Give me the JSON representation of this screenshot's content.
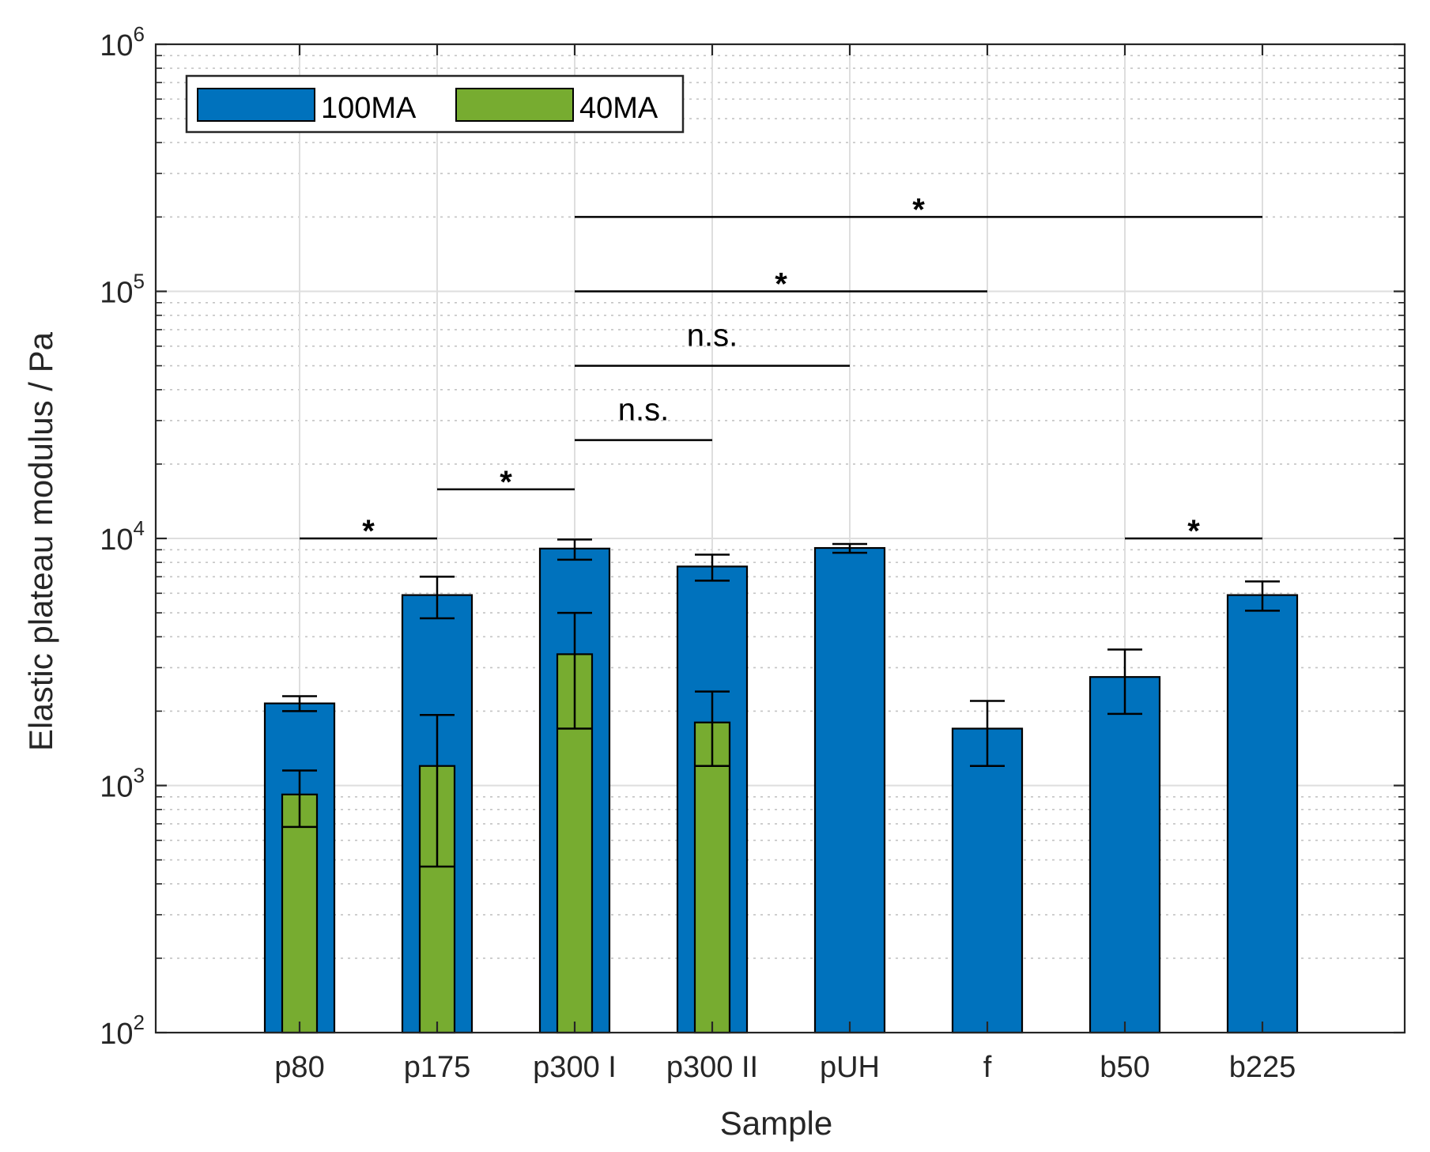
{
  "chart_data": {
    "type": "bar",
    "xlabel": "Sample",
    "ylabel": "Elastic plateau modulus / Pa",
    "yscale": "log",
    "ylim": [
      100,
      1000000
    ],
    "grid": true,
    "legend_position": "top-left",
    "categories": [
      "p80",
      "p175",
      "p300 I",
      "p300 II",
      "pUH",
      "f",
      "b50",
      "b225"
    ],
    "y_tick_labels": [
      {
        "base": "10",
        "exp": "2"
      },
      {
        "base": "10",
        "exp": "3"
      },
      {
        "base": "10",
        "exp": "4"
      },
      {
        "base": "10",
        "exp": "5"
      },
      {
        "base": "10",
        "exp": "6"
      }
    ],
    "series": [
      {
        "name": "100MA",
        "color": "#0072BD",
        "values": [
          2150,
          5900,
          9100,
          7700,
          9150,
          1700,
          2750,
          5900
        ],
        "err_low": [
          2000,
          4750,
          8200,
          6750,
          8750,
          1200,
          1950,
          5100
        ],
        "err_high": [
          2300,
          7000,
          9900,
          8600,
          9500,
          2200,
          3550,
          6700
        ]
      },
      {
        "name": "40MA",
        "color": "#77AC30",
        "values": [
          920,
          1200,
          3400,
          1800,
          null,
          null,
          null,
          null
        ],
        "err_low": [
          680,
          470,
          1700,
          1200,
          null,
          null,
          null,
          null
        ],
        "err_high": [
          1150,
          1930,
          5000,
          2400,
          null,
          null,
          null,
          null
        ]
      }
    ],
    "significance": [
      {
        "from": 0,
        "to": 1,
        "y": 10000,
        "label": "*"
      },
      {
        "from": 1,
        "to": 2,
        "y": 15800,
        "label": "*"
      },
      {
        "from": 2,
        "to": 3,
        "y": 25000,
        "label": "n.s."
      },
      {
        "from": 2,
        "to": 4,
        "y": 50000,
        "label": "n.s."
      },
      {
        "from": 2,
        "to": 5,
        "y": 100000,
        "label": "*"
      },
      {
        "from": 2,
        "to": 7,
        "y": 200000,
        "label": "*"
      },
      {
        "from": 6,
        "to": 7,
        "y": 10000,
        "label": "*"
      }
    ]
  }
}
